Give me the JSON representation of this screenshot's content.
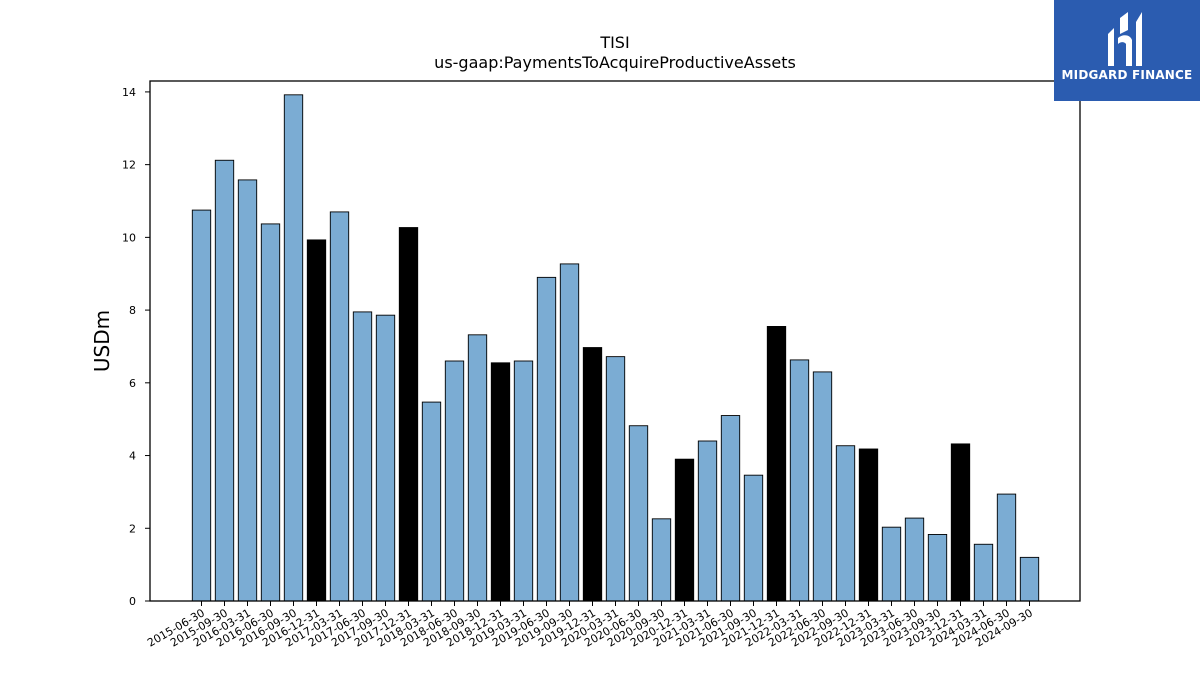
{
  "chart_data": {
    "type": "bar",
    "title": "TISI",
    "subtitle": "us-gaap:PaymentsToAcquireProductiveAssets",
    "xlabel": "",
    "ylabel": "USDm",
    "ylim": [
      0,
      14.3
    ],
    "yticks": [
      "0",
      "2",
      "4",
      "6",
      "8",
      "10",
      "12",
      "14"
    ],
    "grid": false,
    "colors": {
      "quarterly": "#7bacd3",
      "annual": "#000000",
      "edge": "#000000"
    },
    "categories": [
      "2015-06-30",
      "2015-09-30",
      "2016-03-31",
      "2016-06-30",
      "2016-09-30",
      "2016-12-31",
      "2017-03-31",
      "2017-06-30",
      "2017-09-30",
      "2017-12-31",
      "2018-03-31",
      "2018-06-30",
      "2018-09-30",
      "2018-12-31",
      "2019-03-31",
      "2019-06-30",
      "2019-09-30",
      "2019-12-31",
      "2020-03-31",
      "2020-06-30",
      "2020-09-30",
      "2020-12-31",
      "2021-03-31",
      "2021-06-30",
      "2021-09-30",
      "2021-12-31",
      "2022-03-31",
      "2022-06-30",
      "2022-09-30",
      "2022-12-31",
      "2023-03-31",
      "2023-06-30",
      "2023-09-30",
      "2023-12-31",
      "2024-03-31",
      "2024-06-30",
      "2024-09-30"
    ],
    "values": [
      10.75,
      12.12,
      11.58,
      10.37,
      13.92,
      9.93,
      10.7,
      7.95,
      7.86,
      10.27,
      5.47,
      6.6,
      7.32,
      6.55,
      6.6,
      8.9,
      9.27,
      6.97,
      6.72,
      4.82,
      2.26,
      3.9,
      4.4,
      5.1,
      3.46,
      7.55,
      6.63,
      6.3,
      4.27,
      4.18,
      2.03,
      2.28,
      1.83,
      4.32,
      1.56,
      2.94,
      1.2
    ],
    "annual_flags": [
      false,
      false,
      false,
      false,
      false,
      true,
      false,
      false,
      false,
      true,
      false,
      false,
      false,
      true,
      false,
      false,
      false,
      true,
      false,
      false,
      false,
      true,
      false,
      false,
      false,
      true,
      false,
      false,
      false,
      true,
      false,
      false,
      false,
      true,
      false,
      false,
      false
    ]
  },
  "logo": {
    "text": "MIDGARD FINANCE"
  }
}
